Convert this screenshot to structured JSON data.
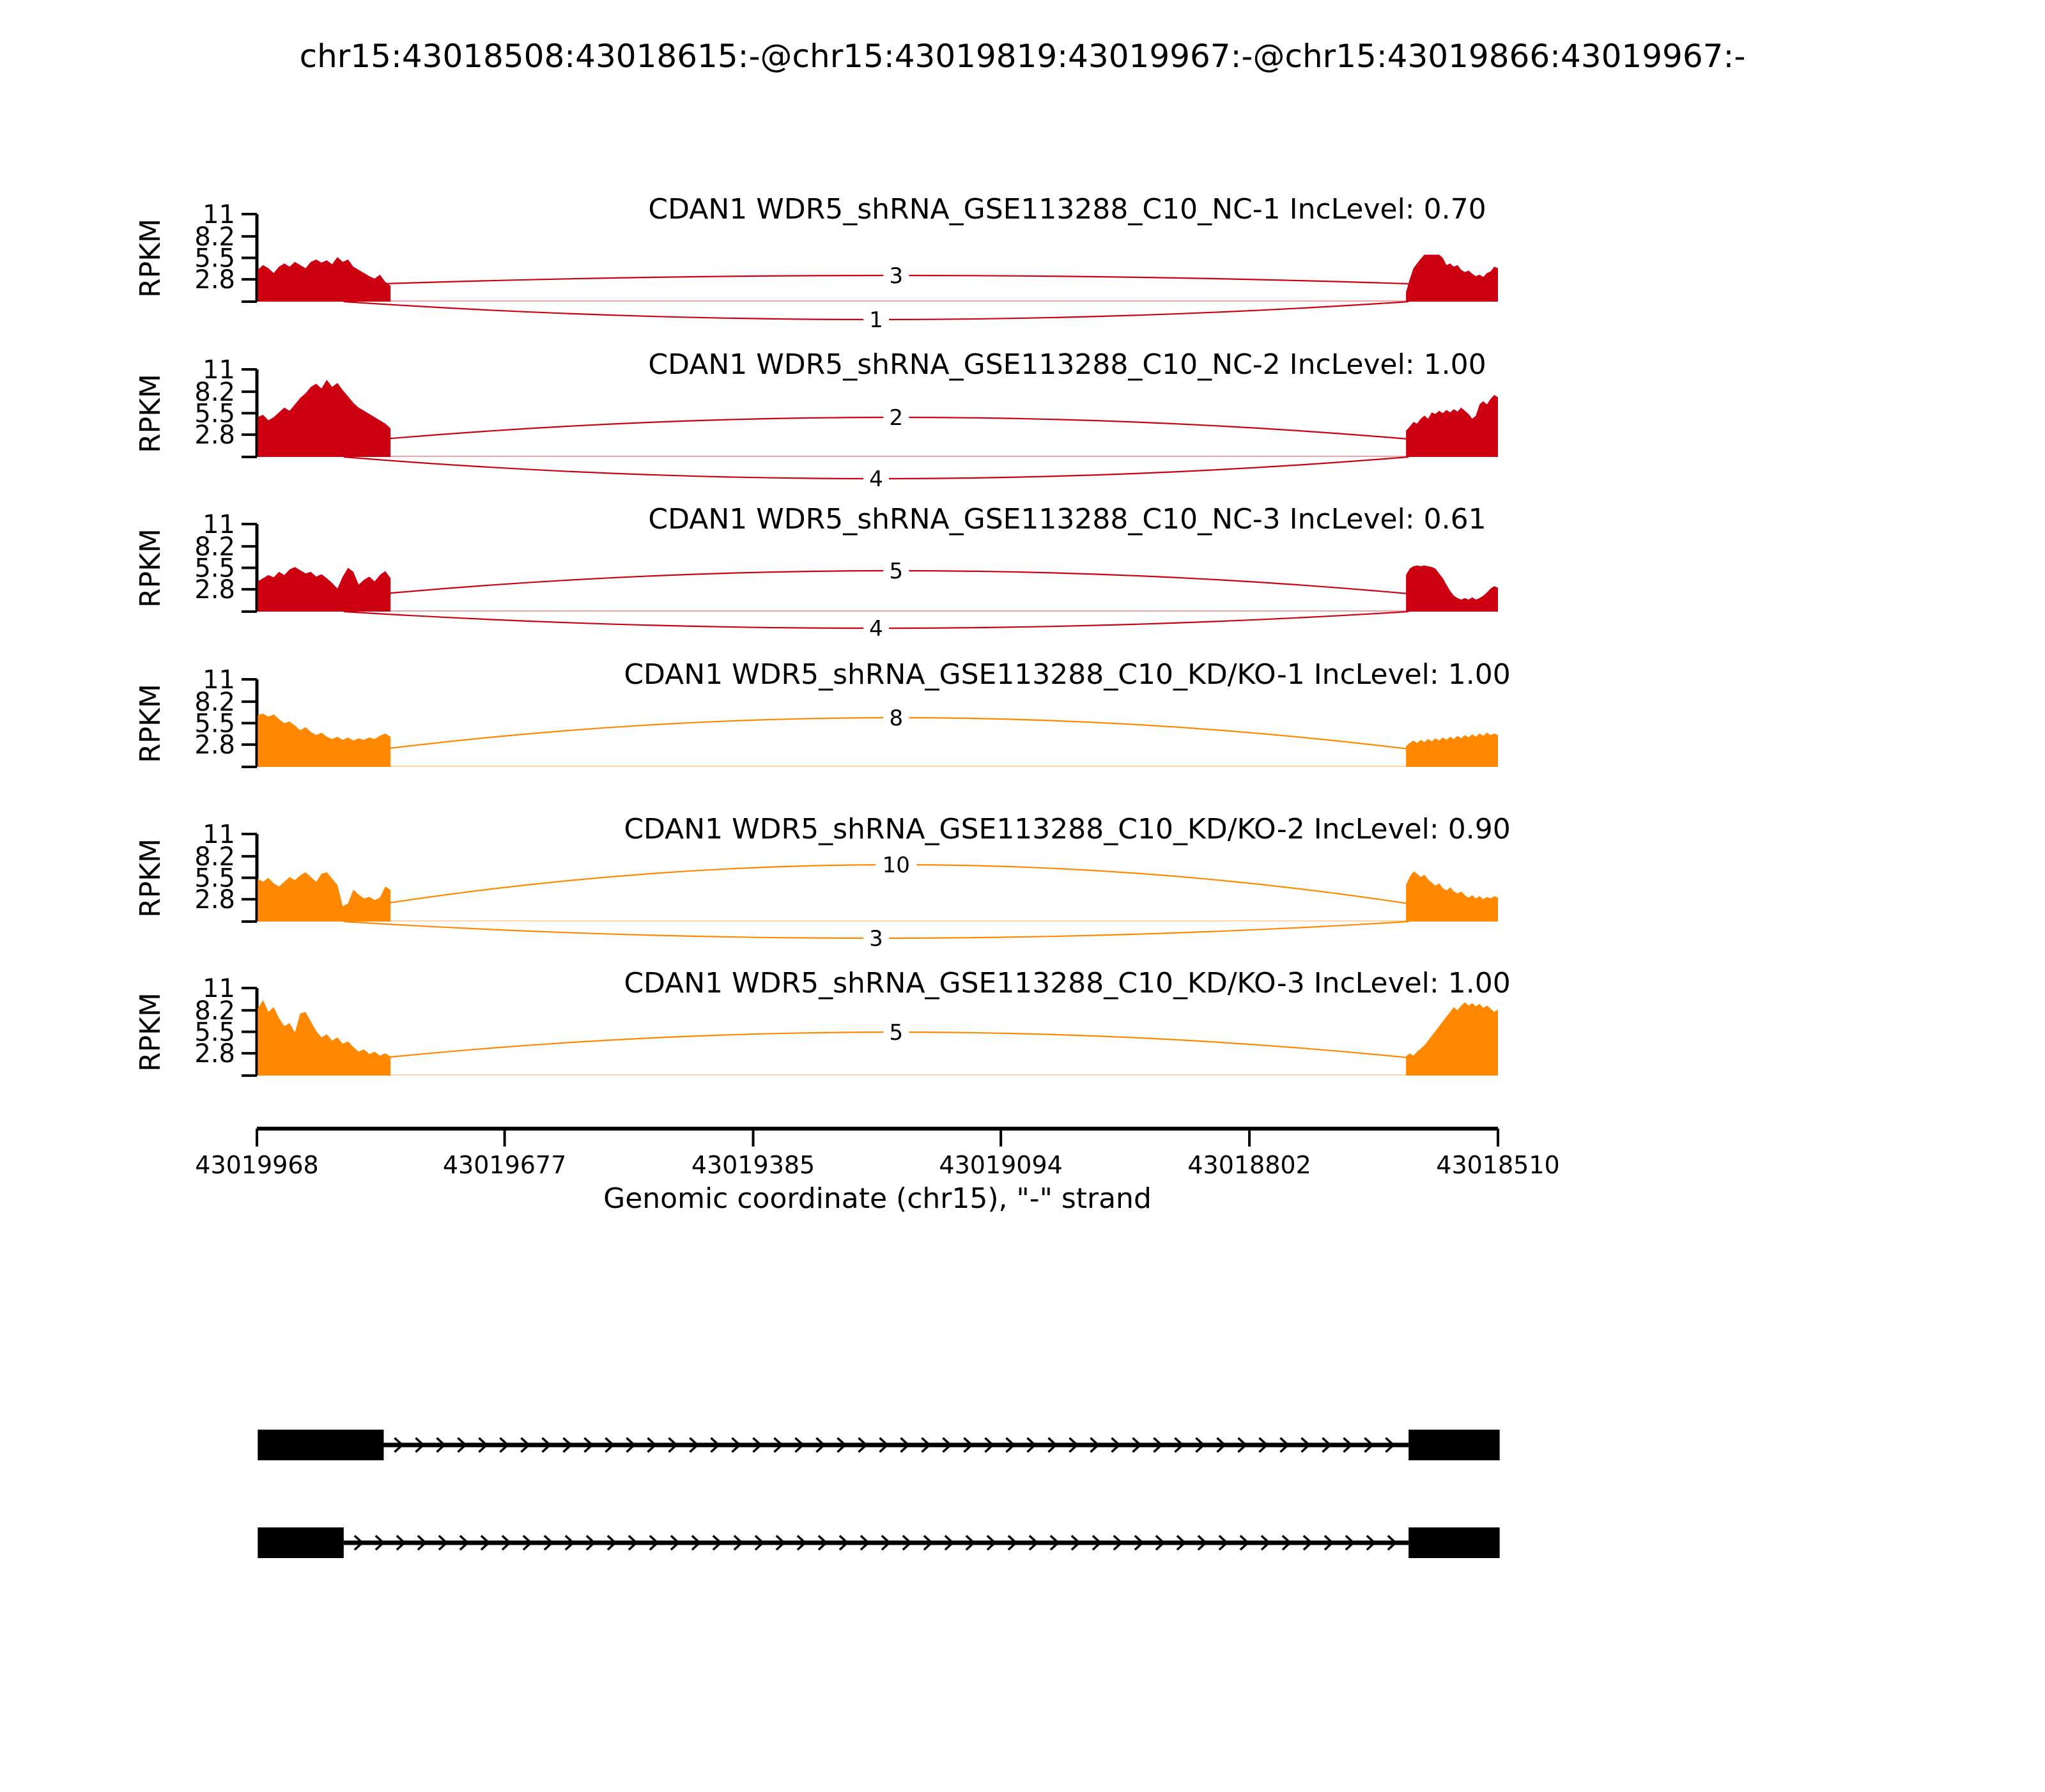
{
  "title": "chr15:43018508:43018615:-@chr15:43019819:43019967:-@chr15:43019866:43019967:-",
  "colors": {
    "group1": "#CC0011",
    "group2": "#FF8800"
  },
  "y_axis": {
    "label": "RPKM",
    "ticks": [
      "11",
      "8.2",
      "5.5",
      "2.8"
    ],
    "tick_values": [
      11,
      8.2,
      5.5,
      2.8
    ],
    "max": 11
  },
  "x_axis": {
    "label": "Genomic coordinate (chr15), \"-\" strand",
    "ticks": [
      "43019968",
      "43019677",
      "43019385",
      "43019094",
      "43018802",
      "43018510"
    ],
    "tick_values": [
      43019968,
      43019677,
      43019385,
      43019094,
      43018802,
      43018510
    ],
    "start": 43019968,
    "end": 43018510
  },
  "chart_data": {
    "type": "sashimi",
    "gene": "CDAN1",
    "strand": "-",
    "chromosome": "chr15",
    "tracks": [
      {
        "label": "CDAN1 WDR5_shRNA_GSE113288_C10_NC-1 IncLevel: 0.70",
        "sample": "WDR5_shRNA_GSE113288_C10_NC-1",
        "inc_level": "0.70",
        "color_group": "group1",
        "coverage_left": [
          4.0,
          4.6,
          4.2,
          3.6,
          4.4,
          4.8,
          4.4,
          5.0,
          4.6,
          4.2,
          5.0,
          5.3,
          4.9,
          5.2,
          4.7,
          5.6,
          5.0,
          5.3,
          4.4,
          4.0,
          3.6,
          3.2,
          2.9,
          3.4,
          2.5,
          2.0
        ],
        "coverage_right": [
          1.2,
          2.8,
          4.2,
          4.8,
          5.4,
          5.9,
          5.9,
          5.9,
          5.9,
          5.9,
          5.5,
          4.6,
          4.8,
          4.4,
          4.6,
          4.0,
          3.7,
          3.9,
          3.5,
          3.2,
          3.4,
          3.1,
          3.6,
          3.8,
          4.4,
          4.2
        ],
        "junctions": [
          {
            "reads": "3",
            "donor": 43019819,
            "acceptor": 43018615,
            "side": "top",
            "apex": 41
          },
          {
            "reads": "1",
            "donor": 43019866,
            "acceptor": 43018615,
            "side": "bottom",
            "apex": 28
          }
        ]
      },
      {
        "label": "CDAN1 WDR5_shRNA_GSE113288_C10_NC-2 IncLevel: 1.00",
        "sample": "WDR5_shRNA_GSE113288_C10_NC-2",
        "inc_level": "1.00",
        "color_group": "group1",
        "coverage_left": [
          5.0,
          5.3,
          4.6,
          5.0,
          5.6,
          6.2,
          5.8,
          6.6,
          7.4,
          8.0,
          8.8,
          9.2,
          8.6,
          9.7,
          8.8,
          9.3,
          8.4,
          7.6,
          6.8,
          6.2,
          5.8,
          5.4,
          5.0,
          4.6,
          4.2,
          3.6
        ],
        "coverage_right": [
          3.3,
          3.8,
          4.4,
          4.2,
          4.8,
          5.2,
          4.8,
          5.6,
          5.4,
          5.8,
          5.5,
          5.9,
          5.6,
          6.0,
          5.7,
          6.2,
          5.8,
          5.4,
          4.8,
          5.2,
          6.6,
          7.0,
          6.6,
          7.3,
          7.8,
          7.5
        ],
        "junctions": [
          {
            "reads": "2",
            "donor": 43019819,
            "acceptor": 43018615,
            "side": "top",
            "apex": 62
          },
          {
            "reads": "4",
            "donor": 43019866,
            "acceptor": 43018615,
            "side": "bottom",
            "apex": 34
          }
        ]
      },
      {
        "label": "CDAN1 WDR5_shRNA_GSE113288_C10_NC-3 IncLevel: 0.61",
        "sample": "WDR5_shRNA_GSE113288_C10_NC-3",
        "inc_level": "0.61",
        "color_group": "group1",
        "coverage_left": [
          3.8,
          4.2,
          4.6,
          4.3,
          5.0,
          4.6,
          5.3,
          5.6,
          5.2,
          4.8,
          5.0,
          4.4,
          4.7,
          4.2,
          3.6,
          2.9,
          4.4,
          5.5,
          5.0,
          3.4,
          4.0,
          4.4,
          3.8,
          4.6,
          5.1,
          4.2
        ],
        "coverage_right": [
          4.6,
          5.4,
          5.7,
          5.8,
          5.7,
          5.8,
          5.7,
          5.6,
          5.4,
          4.8,
          4.2,
          3.4,
          2.6,
          2.0,
          1.7,
          1.5,
          1.7,
          1.5,
          1.8,
          1.5,
          1.7,
          2.0,
          2.4,
          2.9,
          3.2,
          3.0
        ],
        "junctions": [
          {
            "reads": "5",
            "donor": 43019819,
            "acceptor": 43018615,
            "side": "top",
            "apex": 64
          },
          {
            "reads": "4",
            "donor": 43019866,
            "acceptor": 43018615,
            "side": "bottom",
            "apex": 26
          }
        ]
      },
      {
        "label": "CDAN1 WDR5_shRNA_GSE113288_C10_KD/KO-1 IncLevel: 1.00",
        "sample": "WDR5_shRNA_GSE113288_C10_KD/KO-1",
        "inc_level": "1.00",
        "color_group": "group2",
        "coverage_left": [
          6.5,
          6.7,
          6.3,
          6.6,
          6.0,
          5.5,
          5.7,
          5.2,
          4.6,
          5.0,
          4.4,
          4.0,
          4.3,
          3.8,
          3.5,
          3.8,
          3.4,
          3.7,
          3.3,
          3.6,
          3.4,
          3.7,
          3.5,
          3.9,
          4.2,
          3.8
        ],
        "coverage_right": [
          2.6,
          3.0,
          3.3,
          3.0,
          3.4,
          3.1,
          3.5,
          3.2,
          3.6,
          3.3,
          3.7,
          3.4,
          3.8,
          3.5,
          3.9,
          3.6,
          4.0,
          3.7,
          4.1,
          3.8,
          4.2,
          3.9,
          4.3,
          4.0,
          4.2,
          4.0
        ],
        "junctions": [
          {
            "reads": "8",
            "donor": 43019819,
            "acceptor": 43018615,
            "side": "top",
            "apex": 77
          }
        ]
      },
      {
        "label": "CDAN1 WDR5_shRNA_GSE113288_C10_KD/KO-2 IncLevel: 0.90",
        "sample": "WDR5_shRNA_GSE113288_C10_KD/KO-2",
        "inc_level": "0.90",
        "color_group": "group2",
        "coverage_left": [
          5.4,
          5.0,
          5.5,
          4.8,
          4.4,
          5.0,
          5.6,
          5.2,
          5.8,
          6.2,
          5.6,
          5.0,
          6.0,
          6.2,
          5.4,
          4.6,
          1.9,
          2.3,
          4.0,
          3.4,
          2.9,
          3.1,
          2.7,
          3.0,
          4.4,
          4.0
        ],
        "coverage_right": [
          4.6,
          5.6,
          6.3,
          6.0,
          5.6,
          5.9,
          5.3,
          4.9,
          4.5,
          4.8,
          4.2,
          3.9,
          4.3,
          3.8,
          3.5,
          3.8,
          3.3,
          3.0,
          3.3,
          2.9,
          3.2,
          2.8,
          3.1,
          2.9,
          3.2,
          3.0
        ],
        "junctions": [
          {
            "reads": "10",
            "donor": 43019819,
            "acceptor": 43018615,
            "side": "top",
            "apex": 89
          },
          {
            "reads": "3",
            "donor": 43019866,
            "acceptor": 43018615,
            "side": "bottom",
            "apex": 26
          }
        ]
      },
      {
        "label": "CDAN1 WDR5_shRNA_GSE113288_C10_KD/KO-3 IncLevel: 1.00",
        "sample": "WDR5_shRNA_GSE113288_C10_KD/KO-3",
        "inc_level": "1.00",
        "color_group": "group2",
        "coverage_left": [
          8.4,
          9.5,
          8.0,
          8.6,
          7.2,
          6.2,
          6.6,
          5.4,
          7.8,
          8.0,
          6.8,
          5.6,
          4.8,
          5.2,
          4.4,
          4.8,
          4.0,
          4.3,
          3.6,
          3.0,
          3.3,
          2.7,
          3.0,
          2.5,
          2.8,
          2.4
        ],
        "coverage_right": [
          2.4,
          2.8,
          2.5,
          3.0,
          3.4,
          3.8,
          4.4,
          5.0,
          5.6,
          6.2,
          6.8,
          7.4,
          8.0,
          8.6,
          8.2,
          8.8,
          9.2,
          8.8,
          9.1,
          8.7,
          9.0,
          8.5,
          8.8,
          8.4,
          8.0,
          8.3
        ],
        "junctions": [
          {
            "reads": "5",
            "donor": 43019819,
            "acceptor": 43018615,
            "side": "top",
            "apex": 68
          }
        ]
      }
    ],
    "coverage_regions": {
      "left": {
        "g_start": 43019967,
        "g_end": 43019811
      },
      "right": {
        "g_start": 43018618,
        "g_end": 43018510
      }
    },
    "transcripts": [
      {
        "exons": [
          [
            43019967,
            43019819
          ],
          [
            43018615,
            43018508
          ]
        ]
      },
      {
        "exons": [
          [
            43019967,
            43019866
          ],
          [
            43018615,
            43018508
          ]
        ]
      }
    ]
  }
}
